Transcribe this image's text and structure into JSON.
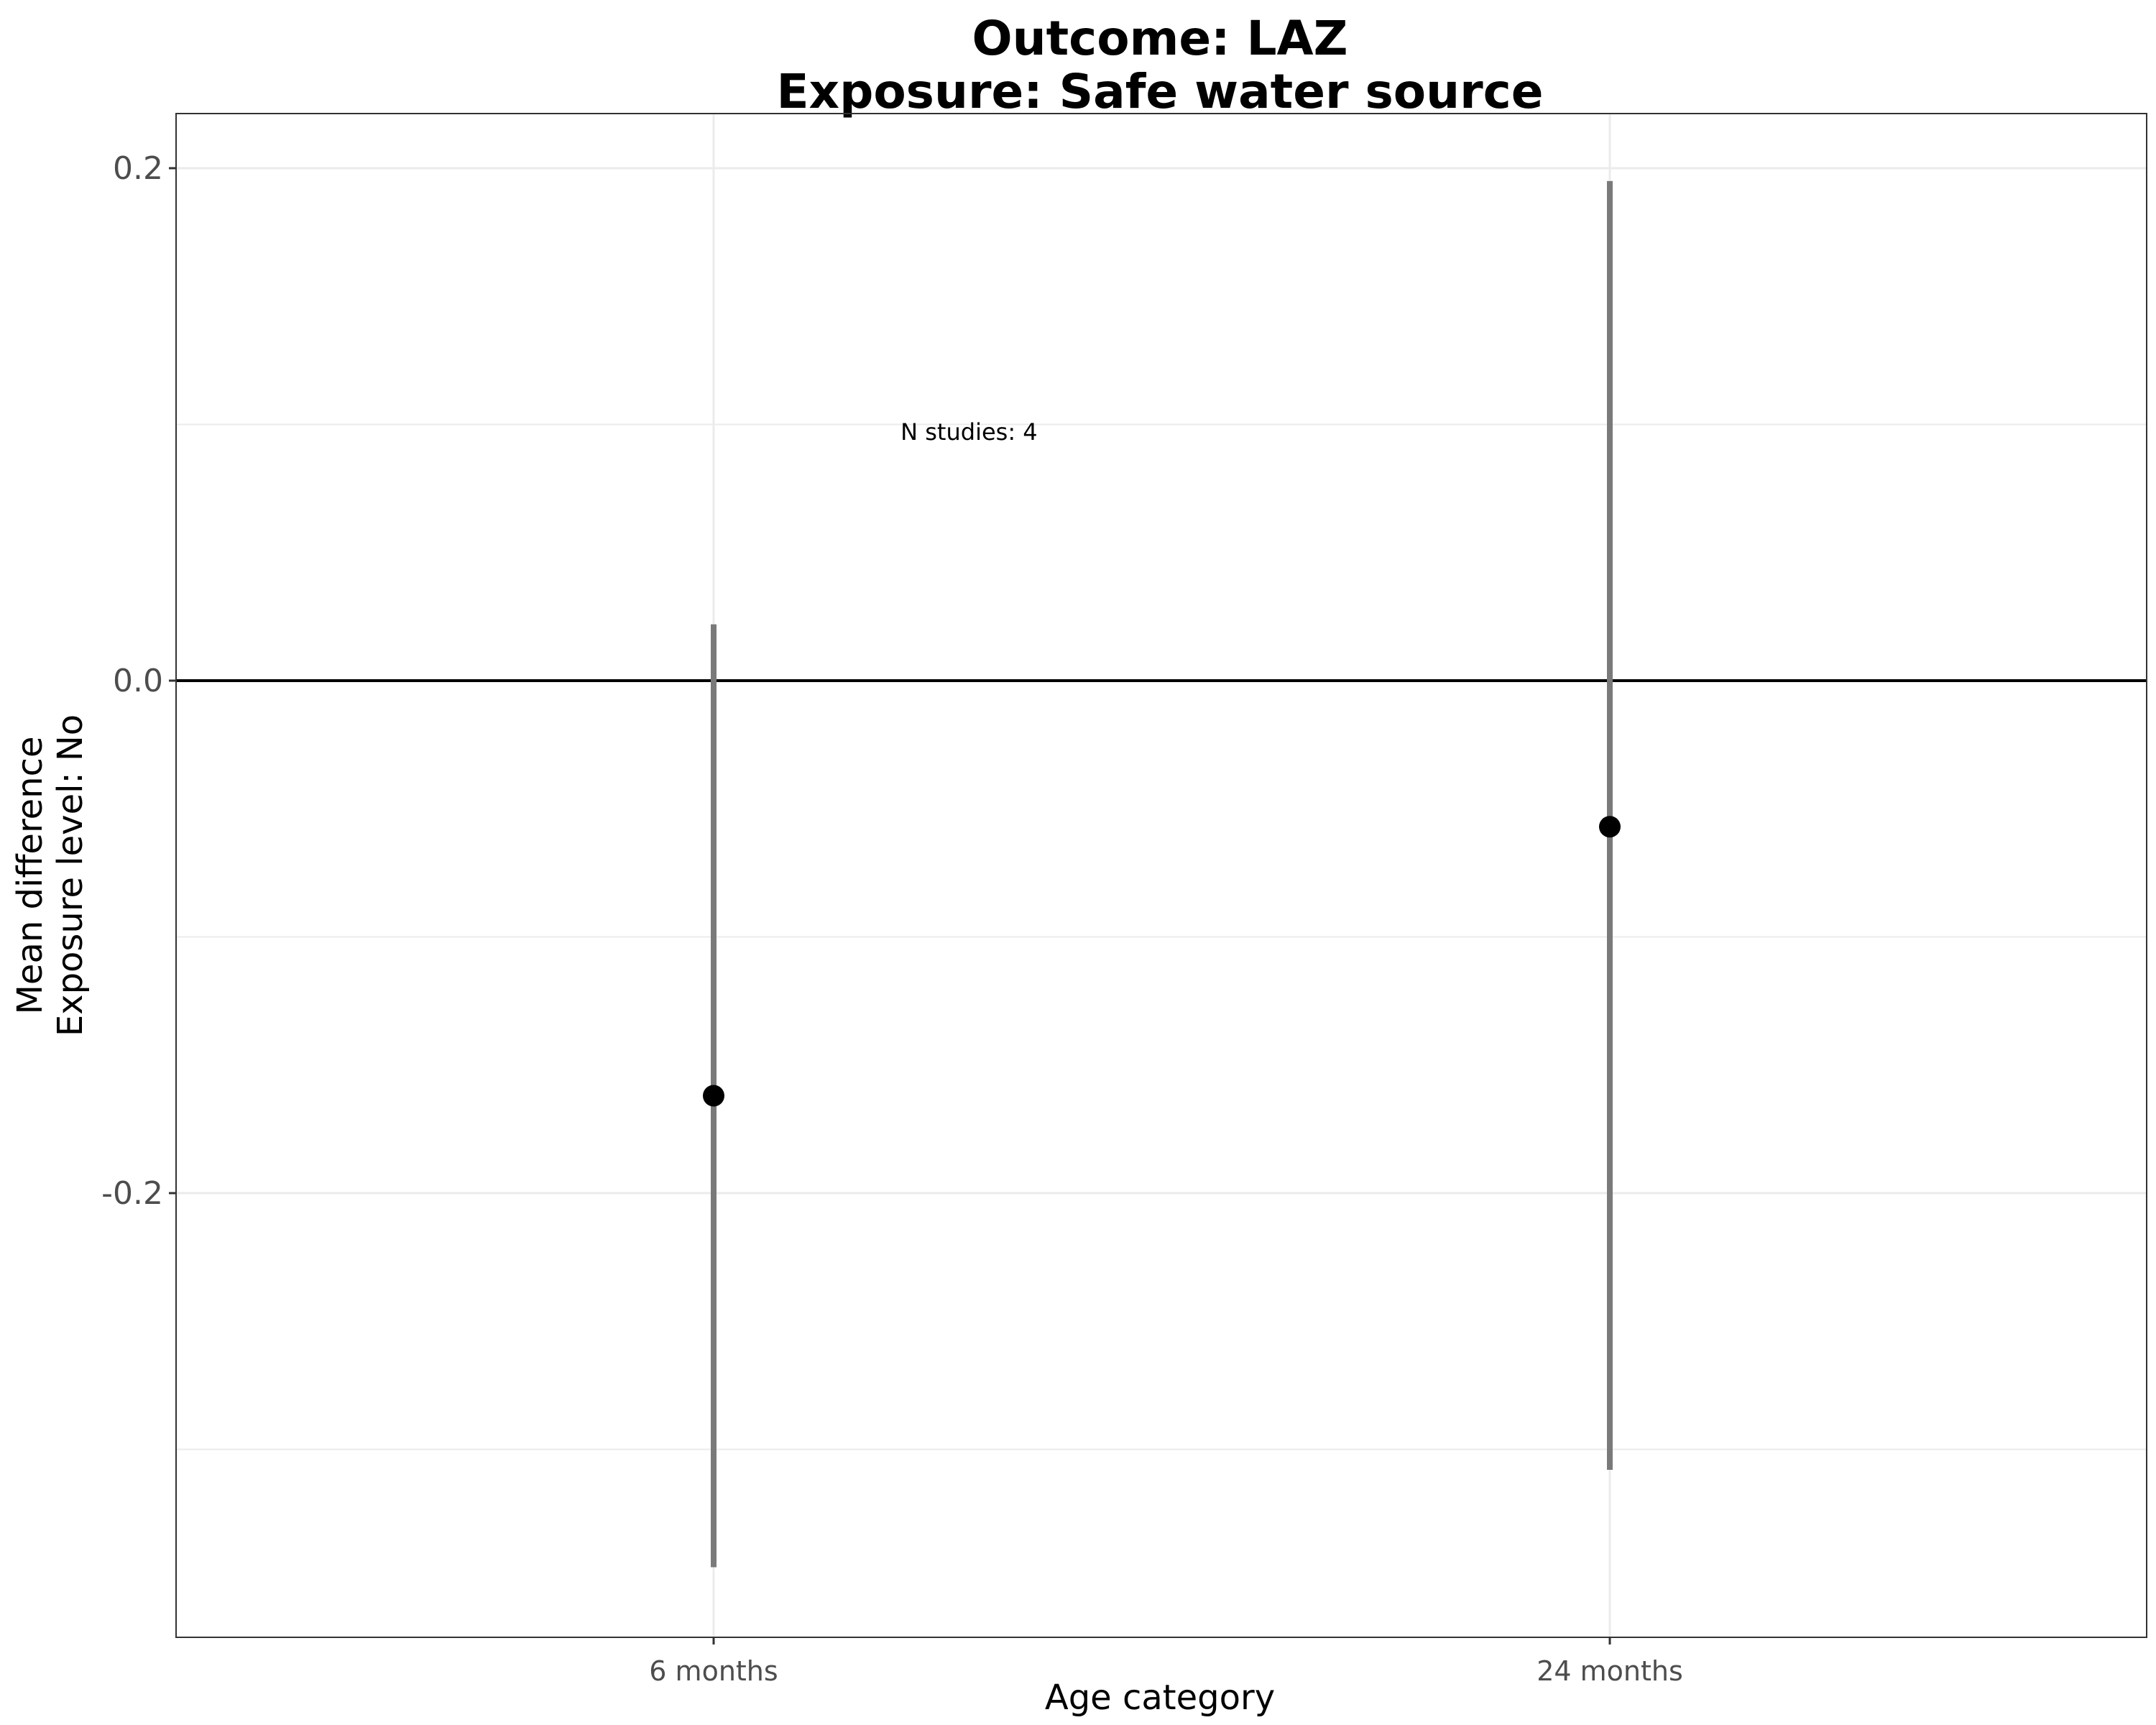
{
  "chart_data": {
    "type": "scatter",
    "subtype": "point-range",
    "title": "Outcome: LAZ",
    "subtitle": "Exposure: Safe water source",
    "xlabel": "Age category",
    "ylabel_line1": "Mean difference",
    "ylabel_line2": "Exposure level: No",
    "categories": [
      "6 months",
      "24 months"
    ],
    "points": [
      {
        "category": "6 months",
        "estimate": -0.162,
        "ci_lower": -0.346,
        "ci_upper": 0.022
      },
      {
        "category": "24 months",
        "estimate": -0.057,
        "ci_lower": -0.308,
        "ci_upper": 0.195
      }
    ],
    "ylim": [
      -0.374,
      0.221
    ],
    "yticks": [
      0.2,
      0.0,
      -0.2
    ],
    "ytick_labels": [
      "0.2",
      "0.0",
      "-0.2"
    ],
    "reference_line": 0.0,
    "annotation": {
      "text": "N studies: 4",
      "x_category_position": 1.285,
      "y": 0.094
    },
    "grid": true,
    "legend": "none",
    "colors": {
      "point": "#000000",
      "errorbar": "#7a7a7a",
      "reference": "#000000",
      "grid": "#ebebeb",
      "panel_border": "#333333"
    }
  }
}
